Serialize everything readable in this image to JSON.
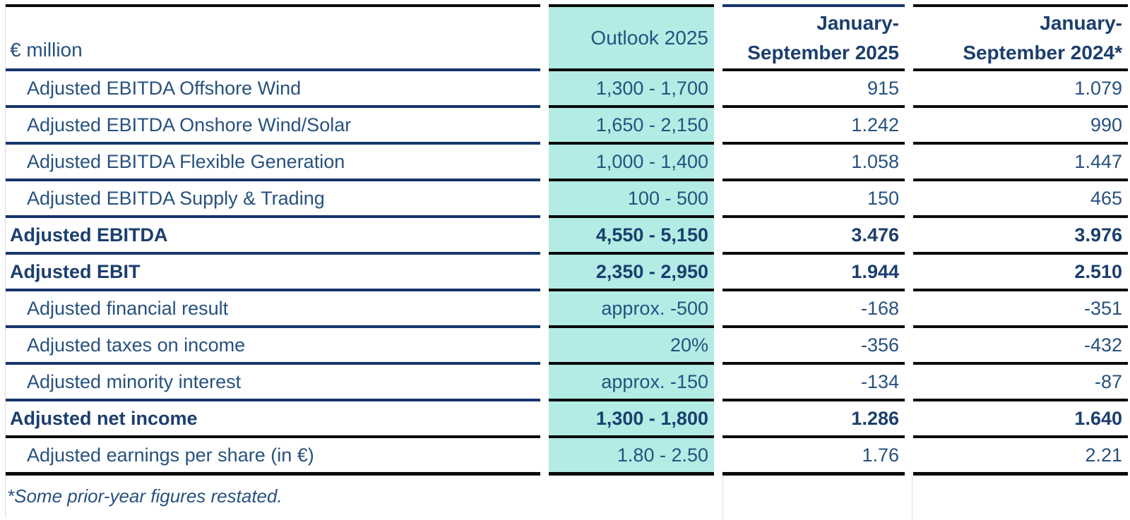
{
  "colors": {
    "text": "#27517f",
    "text_bold": "#1b3e6e",
    "navy_line": "#16356b",
    "black_line": "#0a0a0a",
    "teal_highlight": "#b2ece4",
    "gray_line": "#d9d9d9",
    "background": "#ffffff"
  },
  "table": {
    "header": {
      "unit_label": "€ million",
      "outlook_label": "Outlook 2025",
      "col_2025": {
        "line1": "January-",
        "line2": "September 2025"
      },
      "col_2024": {
        "line1": "January-",
        "line2": "September 2024*"
      }
    },
    "rows": [
      {
        "label": "Adjusted EBITDA Offshore Wind",
        "indent": true,
        "bold": false,
        "outlook": "1,300 - 1,700",
        "sep2025": "915",
        "sep2024": "1.079",
        "label_divider": "navy"
      },
      {
        "label": "Adjusted EBITDA Onshore Wind/Solar",
        "indent": true,
        "bold": false,
        "outlook": "1,650 - 2,150",
        "sep2025": "1.242",
        "sep2024": "990",
        "label_divider": "navy"
      },
      {
        "label": "Adjusted EBITDA Flexible Generation",
        "indent": true,
        "bold": false,
        "outlook": "1,000 - 1,400",
        "sep2025": "1.058",
        "sep2024": "1.447",
        "label_divider": "navy"
      },
      {
        "label": "Adjusted EBITDA Supply & Trading",
        "indent": true,
        "bold": false,
        "outlook": "100 - 500",
        "sep2025": "150",
        "sep2024": "465",
        "label_divider": "navy"
      },
      {
        "label": "Adjusted EBITDA",
        "indent": false,
        "bold": true,
        "outlook": "4,550 - 5,150",
        "sep2025": "3.476",
        "sep2024": "3.976",
        "label_divider": "navy"
      },
      {
        "label": "Adjusted EBIT",
        "indent": false,
        "bold": true,
        "outlook": "2,350 - 2,950",
        "sep2025": "1.944",
        "sep2024": "2.510",
        "label_divider": "navy"
      },
      {
        "label": "Adjusted financial result",
        "indent": true,
        "bold": false,
        "outlook": "approx. -500",
        "sep2025": "-168",
        "sep2024": "-351",
        "label_divider": "navy"
      },
      {
        "label": "Adjusted taxes on income",
        "indent": true,
        "bold": false,
        "outlook": "20%",
        "sep2025": "-356",
        "sep2024": "-432",
        "label_divider": "navy"
      },
      {
        "label": "Adjusted minority interest",
        "indent": true,
        "bold": false,
        "outlook": "approx. -150",
        "sep2025": "-134",
        "sep2024": "-87",
        "label_divider": "navy"
      },
      {
        "label": "Adjusted net income",
        "indent": false,
        "bold": true,
        "outlook": "1,300 - 1,800",
        "sep2025": "1.286",
        "sep2024": "1.640",
        "label_divider": "black"
      },
      {
        "label": "Adjusted earnings per share (in €)",
        "indent": true,
        "bold": false,
        "outlook": "1.80 - 2.50",
        "sep2025": "1.76",
        "sep2024": "2.21",
        "label_divider": "black"
      }
    ],
    "footnote": "*Some prior-year figures restated."
  }
}
